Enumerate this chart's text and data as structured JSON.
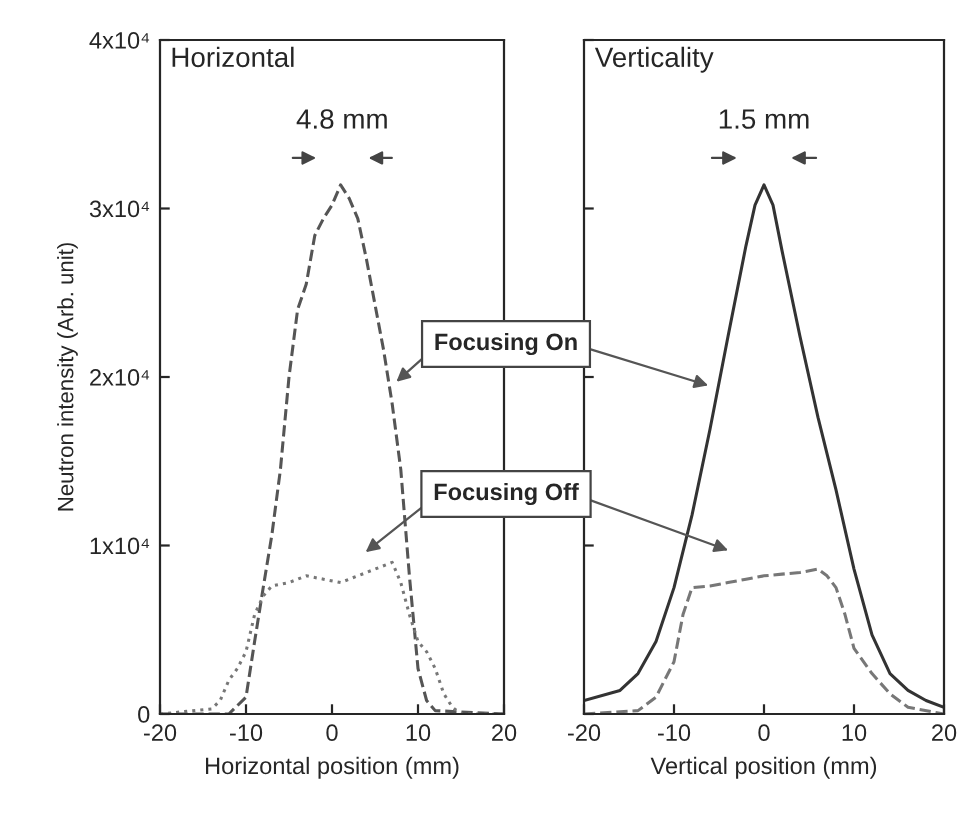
{
  "chart_data": [
    {
      "type": "line",
      "ylabel": "Neutron intensity (Arb. unit)",
      "xlabel": "Horizontal position (mm)",
      "xlim": [
        -20,
        20
      ],
      "xticks": [
        -20,
        -10,
        0,
        10,
        20
      ],
      "ylim": [
        0,
        40000
      ],
      "yticks": [
        {
          "value": 0,
          "label": "0"
        },
        {
          "value": 10000,
          "label": "1x10⁴"
        },
        {
          "value": 20000,
          "label": "2x10⁴"
        },
        {
          "value": 30000,
          "label": "3x10⁴"
        },
        {
          "value": 40000,
          "label": "4x10⁴"
        }
      ],
      "annotations": [
        "Horizontal",
        "4.8 mm"
      ],
      "series": [
        {
          "name": "Focusing On",
          "color": "#555555",
          "line_style": "dashed",
          "x": [
            -20,
            -12,
            -10,
            -9,
            -8,
            -7,
            -6,
            -5,
            -4,
            -3,
            -2,
            -1,
            0,
            1,
            2,
            3,
            4,
            5,
            6,
            7,
            8,
            9,
            10,
            11,
            12,
            20
          ],
          "values": [
            0,
            0,
            1000,
            4300,
            7500,
            10600,
            14500,
            20000,
            24000,
            25500,
            28400,
            29400,
            30200,
            31400,
            30600,
            29400,
            27000,
            24300,
            21600,
            18400,
            14500,
            8200,
            2700,
            800,
            200,
            0
          ]
        },
        {
          "name": "Focusing Off",
          "color": "#777777",
          "line_style": "dotted",
          "x": [
            -20,
            -14,
            -13,
            -12,
            -11,
            -10,
            -9,
            -8,
            -7,
            -5,
            -3,
            -1,
            1,
            3,
            5,
            7,
            8,
            9,
            10,
            11,
            12,
            13,
            14,
            15,
            20
          ],
          "values": [
            0,
            300,
            800,
            2000,
            2700,
            3700,
            5900,
            7000,
            7600,
            7800,
            8200,
            8000,
            7800,
            8200,
            8600,
            9000,
            7800,
            5900,
            4300,
            3700,
            2700,
            1200,
            400,
            0,
            0
          ]
        }
      ]
    },
    {
      "type": "line",
      "xlabel": "Vertical position (mm)",
      "xlim": [
        -20,
        20
      ],
      "xticks": [
        -20,
        -10,
        0,
        10,
        20
      ],
      "ylim": [
        0,
        40000
      ],
      "yticks": [
        {
          "value": 0,
          "label": null
        },
        {
          "value": 10000,
          "label": null
        },
        {
          "value": 20000,
          "label": null
        },
        {
          "value": 30000,
          "label": null
        },
        {
          "value": 40000,
          "label": null
        }
      ],
      "tick_labels": "x",
      "annotations": [
        "Verticality",
        "1.5 mm"
      ],
      "series": [
        {
          "color": "#333333",
          "line_style": "solid",
          "x": [
            -20,
            -16,
            -14,
            -12,
            -10,
            -8,
            -6,
            -4,
            -2,
            -1,
            0,
            1,
            2,
            4,
            6,
            8,
            10,
            12,
            14,
            16,
            18,
            20
          ],
          "values": [
            800,
            1400,
            2400,
            4300,
            7500,
            11800,
            16900,
            22400,
            27800,
            30200,
            31400,
            30200,
            27500,
            22400,
            17600,
            13300,
            8600,
            4700,
            2400,
            1400,
            800,
            400
          ]
        },
        {
          "color": "#777777",
          "line_style": "dashed",
          "x": [
            -20,
            -14,
            -12,
            -10,
            -9,
            -8,
            -6,
            -4,
            -2,
            0,
            2,
            4,
            6,
            7,
            8,
            9,
            10,
            12,
            14,
            16,
            20
          ],
          "values": [
            0,
            200,
            1000,
            3100,
            5900,
            7500,
            7600,
            7800,
            8000,
            8200,
            8300,
            8400,
            8600,
            8200,
            7500,
            5900,
            3900,
            2400,
            1200,
            400,
            0
          ]
        }
      ]
    }
  ]
}
